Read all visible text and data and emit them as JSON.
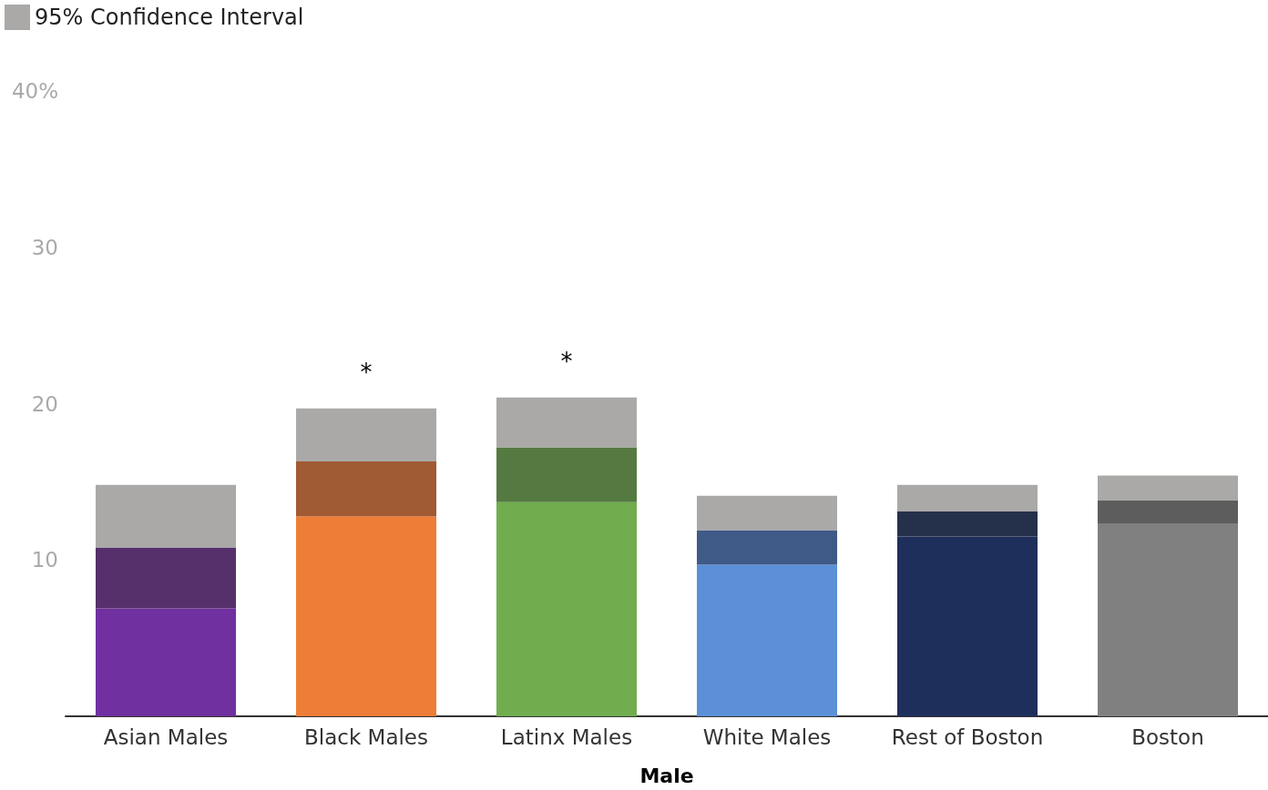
{
  "chart_data": {
    "type": "bar",
    "stacked": true,
    "xlabel": "Male",
    "categories": [
      "Asian Males",
      "Black Males",
      "Latinx Males",
      "White Males",
      "Rest of Boston",
      "Boston"
    ],
    "series": [
      {
        "colors": [
          "#7030a0",
          "#ed7d37",
          "#70ad4f",
          "#5b8fd8",
          "#1e2f5c",
          "#808080"
        ],
        "values": [
          6.9,
          12.8,
          13.7,
          9.7,
          11.5,
          12.3
        ]
      },
      {
        "colors": [
          "#56306b",
          "#a05a34",
          "#557a41",
          "#3f5a87",
          "#25304a",
          "#5d5d5d"
        ],
        "values": [
          3.9,
          3.5,
          3.5,
          2.2,
          1.6,
          1.5
        ]
      },
      {
        "name": "95% Confidence Interval",
        "color": "#aaa9a7",
        "values": [
          4.0,
          3.4,
          3.2,
          2.2,
          1.7,
          1.6
        ]
      }
    ],
    "ylim": [
      0,
      40
    ],
    "yticks": [
      10,
      20,
      30,
      {
        "value": 40,
        "label": "40%"
      }
    ],
    "grid": false,
    "legend": "top left",
    "annotations": [
      {
        "text": "*",
        "x": "Black Males",
        "y": 19.7
      },
      {
        "text": "*",
        "x": "Latinx Males",
        "y": 20.4
      }
    ]
  }
}
